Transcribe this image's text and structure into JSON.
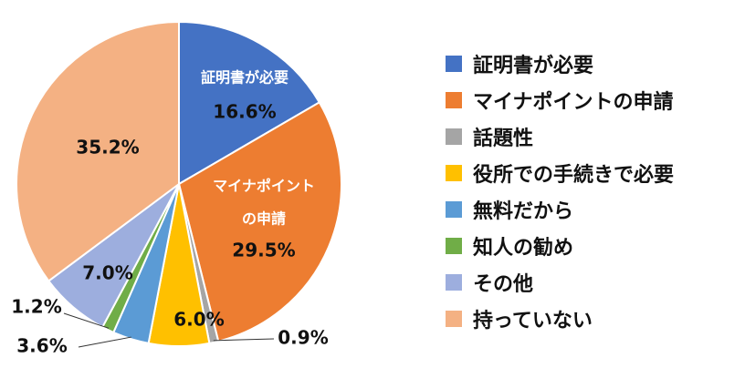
{
  "chart_data": {
    "type": "pie",
    "categories": [
      "証明書が必要",
      "マイナポイントの申請",
      "話題性",
      "役所での手続きで必要",
      "無料だから",
      "知人の勧め",
      "その他",
      "持っていない"
    ],
    "values": [
      16.6,
      29.5,
      0.9,
      6.0,
      3.6,
      1.2,
      7.0,
      35.2
    ],
    "value_labels": [
      "16.6%",
      "29.5%",
      "0.9%",
      "6.0%",
      "3.6%",
      "1.2%",
      "7.0%",
      "35.2%"
    ],
    "colors": [
      "#4472C4",
      "#ED7D31",
      "#A5A5A5",
      "#FFC000",
      "#5B9BD5",
      "#70AD47",
      "#9DAEDE",
      "#F4B183"
    ],
    "slice_labels": [
      [
        "証明書が必要"
      ],
      [
        "マイナポイント",
        "の申請"
      ],
      [],
      [],
      [],
      [],
      [],
      []
    ],
    "legend_position": "right",
    "start": "12 o'clock",
    "direction": "clockwise"
  }
}
